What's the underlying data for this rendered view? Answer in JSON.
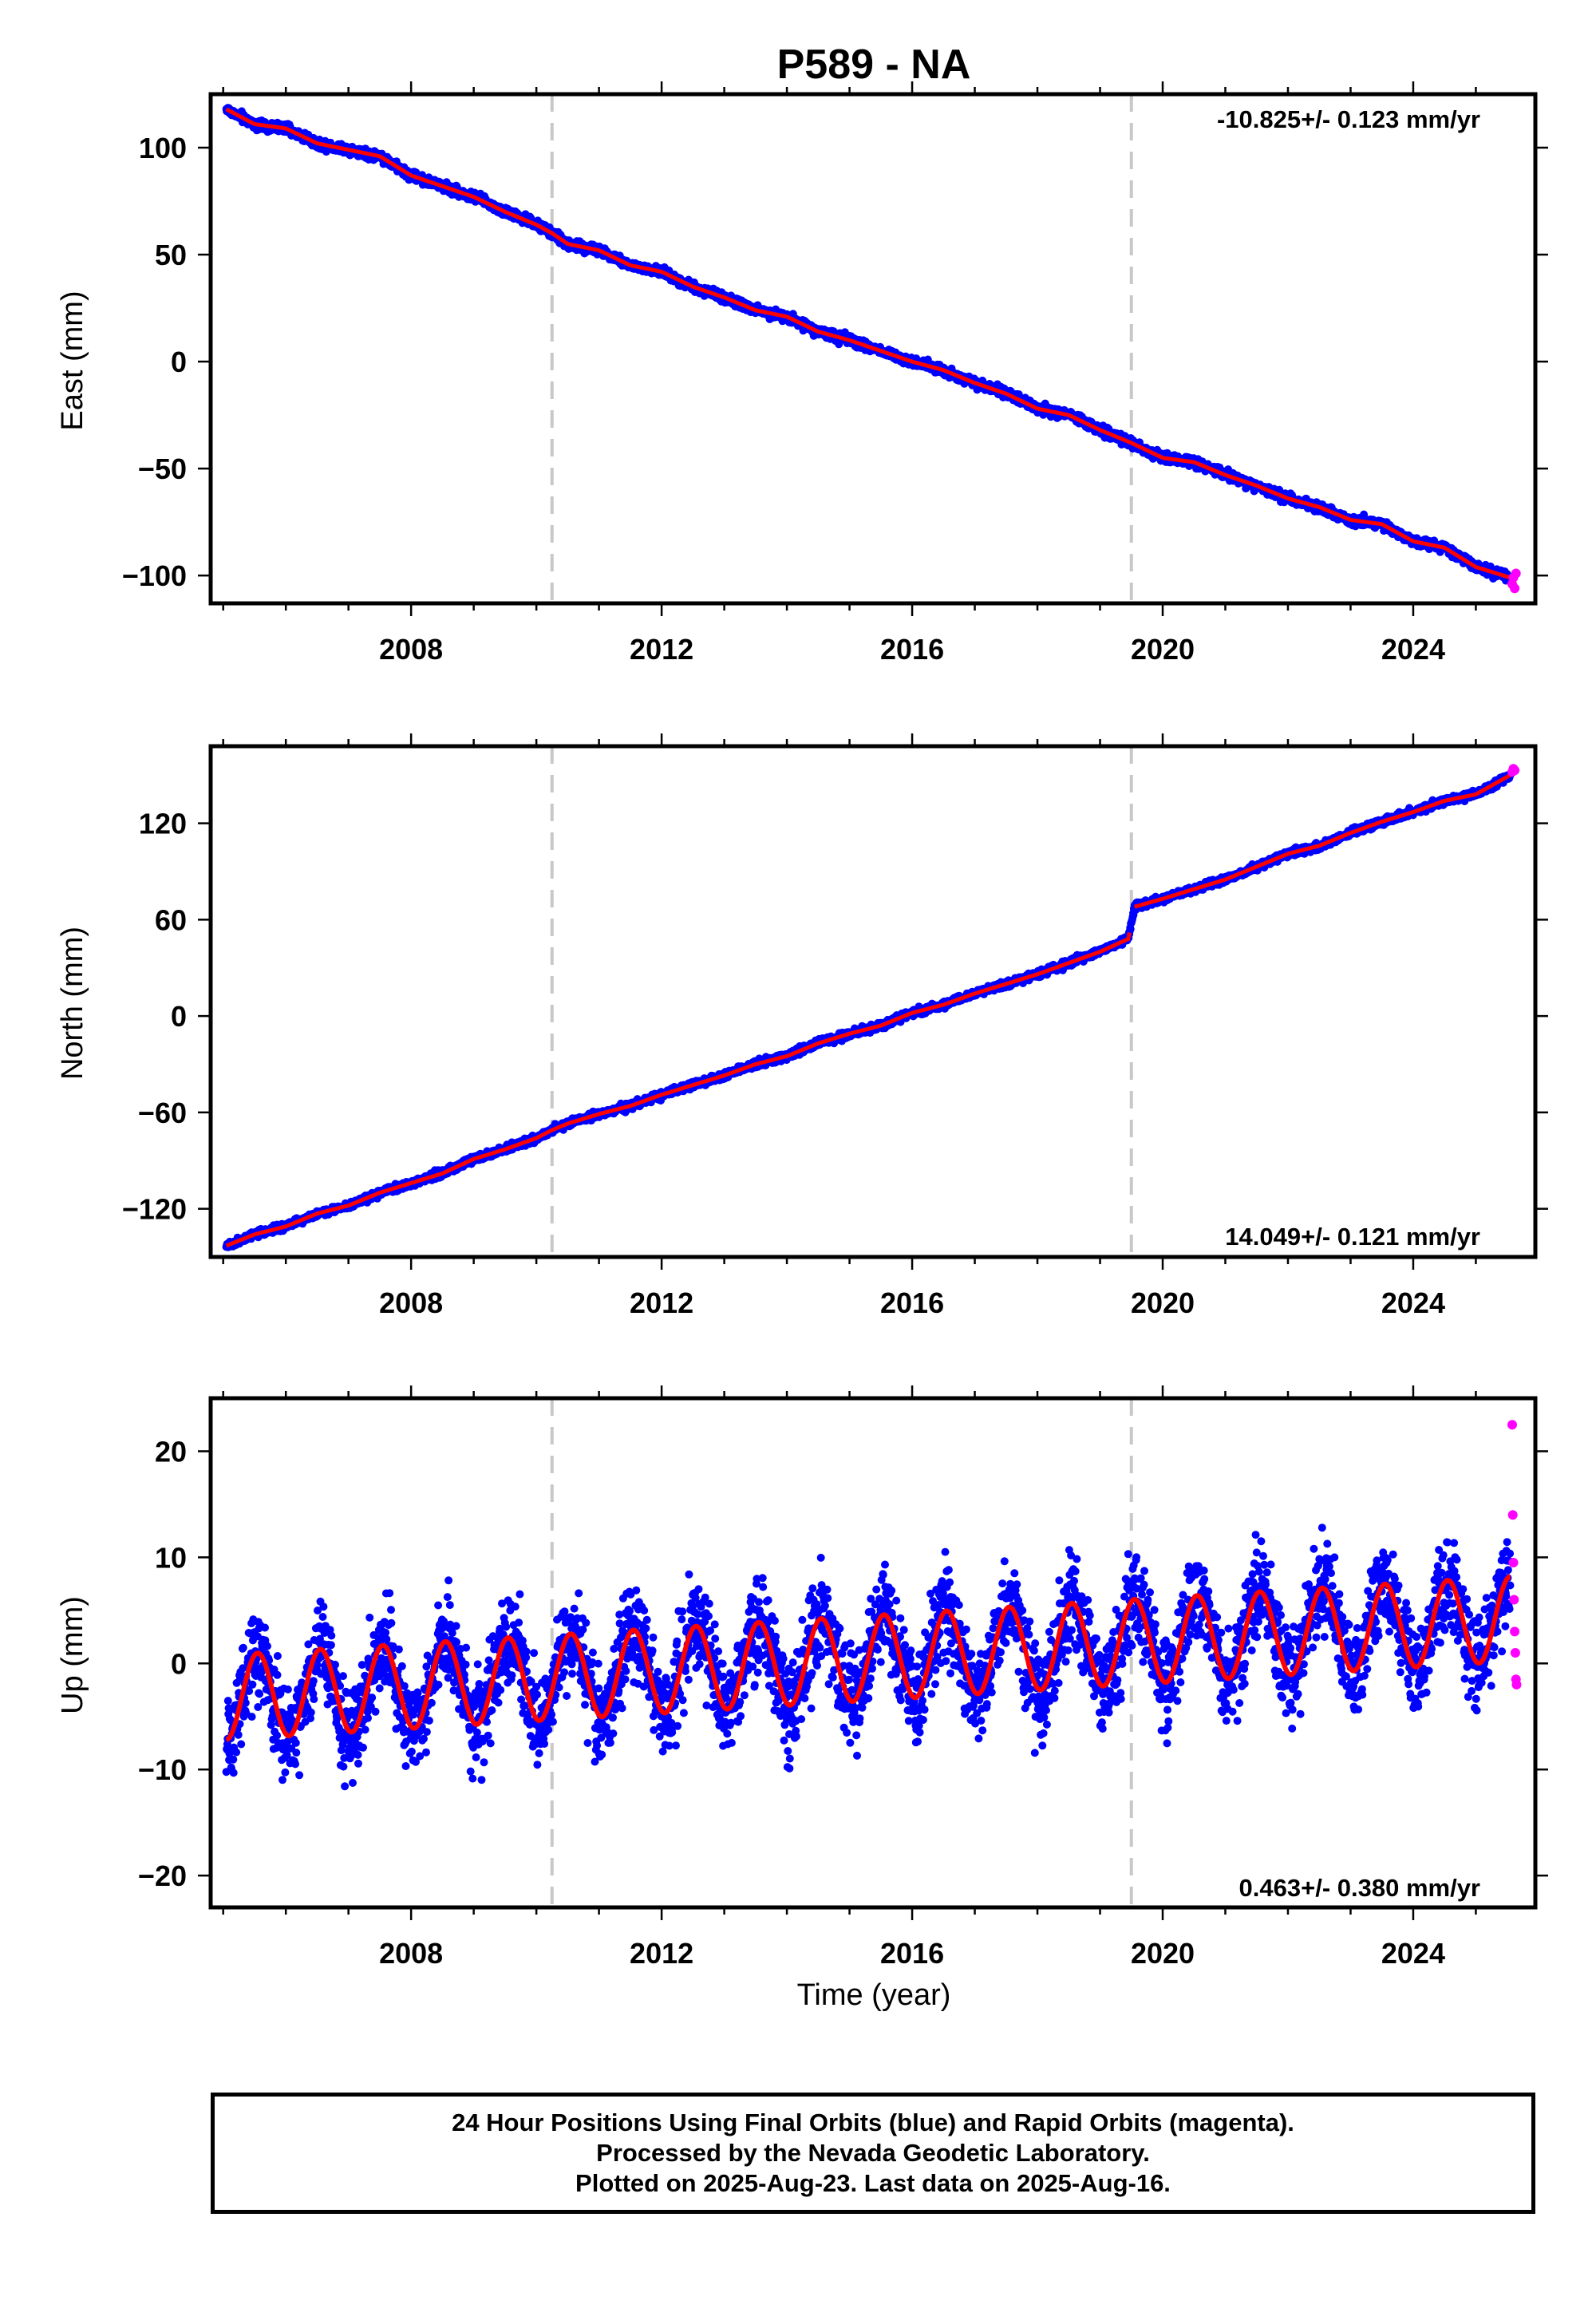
{
  "title": "P589 - NA",
  "colors": {
    "final": "#0000ff",
    "rapid": "#ff00ff",
    "model": "#ff0000",
    "event": "#c8c8c8"
  },
  "event_lines": [
    2010.25,
    2019.5
  ],
  "chart_data": [
    {
      "type": "scatter",
      "ylabel": "East (mm)",
      "xlabel": "",
      "xlim": [
        2004.8,
        2025.95
      ],
      "ylim": [
        -113,
        125
      ],
      "xticks": [
        "2008",
        "2012",
        "2016",
        "2020",
        "2024"
      ],
      "yticks": [
        "100",
        "50",
        "0",
        "−50",
        "−100"
      ],
      "rate": "-10.825+/- 0.123 mm/yr",
      "rate_position": "top-right",
      "grid": false,
      "series": [
        {
          "kind": "final",
          "x": [
            2005.05,
            2005.5,
            2006.0,
            2006.5,
            2007.0,
            2007.5,
            2008.0,
            2008.5,
            2009.0,
            2009.5,
            2010.0,
            2010.25,
            2010.5,
            2011.0,
            2011.5,
            2012.0,
            2012.5,
            2013.0,
            2013.5,
            2014.0,
            2014.5,
            2015.0,
            2015.5,
            2016.0,
            2016.5,
            2017.0,
            2017.5,
            2018.0,
            2018.5,
            2019.0,
            2019.5,
            2020.0,
            2020.5,
            2021.0,
            2021.5,
            2022.0,
            2022.5,
            2023.0,
            2023.5,
            2024.0,
            2024.5,
            2025.0,
            2025.55
          ],
          "y": [
            118,
            111,
            109,
            102,
            99,
            96,
            87,
            82,
            77,
            70,
            64,
            60,
            55,
            52,
            45,
            42,
            35,
            30,
            24,
            21,
            14,
            10,
            5,
            0,
            -4,
            -10,
            -15,
            -22,
            -25,
            -32,
            -38,
            -45,
            -47,
            -53,
            -58,
            -64,
            -68,
            -74,
            -76,
            -84,
            -87,
            -96,
            -101
          ]
        },
        {
          "kind": "rapid",
          "x": [
            2025.58,
            2025.6,
            2025.62,
            2025.64
          ],
          "y": [
            -104,
            -101,
            -106,
            -99
          ]
        }
      ]
    },
    {
      "type": "scatter",
      "ylabel": "North (mm)",
      "xlabel": "",
      "xlim": [
        2004.8,
        2025.95
      ],
      "ylim": [
        -150,
        168
      ],
      "xticks": [
        "2008",
        "2012",
        "2016",
        "2020",
        "2024"
      ],
      "yticks": [
        "120",
        "60",
        "0",
        "−60",
        "−120"
      ],
      "rate": "14.049+/- 0.121 mm/yr",
      "rate_position": "bottom-right",
      "grid": false,
      "series": [
        {
          "kind": "final",
          "x": [
            2005.05,
            2005.5,
            2006.0,
            2006.5,
            2007.0,
            2007.5,
            2008.0,
            2008.5,
            2009.0,
            2009.5,
            2010.0,
            2010.25,
            2010.5,
            2011.0,
            2011.5,
            2012.0,
            2012.5,
            2013.0,
            2013.5,
            2014.0,
            2014.5,
            2015.0,
            2015.5,
            2016.0,
            2016.5,
            2017.0,
            2017.5,
            2018.0,
            2018.5,
            2019.0,
            2019.45,
            2019.55,
            2020.0,
            2020.5,
            2021.0,
            2021.5,
            2022.0,
            2022.5,
            2023.0,
            2023.5,
            2024.0,
            2024.5,
            2025.0,
            2025.55
          ],
          "y": [
            -143,
            -136,
            -131,
            -123,
            -118,
            -110,
            -104,
            -98,
            -89,
            -83,
            -76,
            -71,
            -67,
            -61,
            -56,
            -49,
            -43,
            -37,
            -30,
            -25,
            -17,
            -11,
            -6,
            2,
            7,
            14,
            20,
            26,
            33,
            40,
            48,
            68,
            73,
            79,
            85,
            93,
            101,
            106,
            114,
            121,
            127,
            134,
            138,
            150
          ]
        },
        {
          "kind": "rapid",
          "x": [
            2025.58,
            2025.6,
            2025.62
          ],
          "y": [
            152,
            154,
            153
          ]
        }
      ]
    },
    {
      "type": "scatter",
      "ylabel": "Up (mm)",
      "xlabel": "Time (year)",
      "xlim": [
        2004.8,
        2025.95
      ],
      "ylim": [
        -23,
        25
      ],
      "xticks": [
        "2008",
        "2012",
        "2016",
        "2020",
        "2024"
      ],
      "yticks": [
        "20",
        "10",
        "0",
        "−10",
        "−20"
      ],
      "rate": "0.463+/- 0.380 mm/yr",
      "rate_position": "bottom-right",
      "grid": false,
      "amplitude": 4,
      "series": [
        {
          "kind": "model",
          "x": [
            2005.05,
            2025.55
          ],
          "y": [
            -3.2,
            4.2
          ]
        },
        {
          "kind": "rapid",
          "x": [
            2025.58,
            2025.59,
            2025.6,
            2025.61,
            2025.62,
            2025.63,
            2025.64,
            2025.65
          ],
          "y": [
            22.5,
            14,
            9.5,
            6,
            3,
            1,
            -1.5,
            -2
          ]
        }
      ]
    }
  ],
  "footer": {
    "line1": "24 Hour Positions Using Final Orbits (blue) and Rapid Orbits (magenta).",
    "line2": "Processed by the Nevada Geodetic Laboratory.",
    "line3": "Plotted on 2025-Aug-23. Last data on 2025-Aug-16."
  }
}
